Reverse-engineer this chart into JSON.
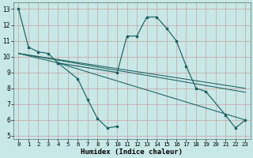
{
  "title": "",
  "xlabel": "Humidex (Indice chaleur)",
  "background_color": "#c8e8e8",
  "grid_color": "#c8a0a0",
  "line_color": "#1a6060",
  "xlim": [
    -0.5,
    23.5
  ],
  "ylim": [
    4.8,
    13.4
  ],
  "xticks": [
    0,
    1,
    2,
    3,
    4,
    5,
    6,
    7,
    8,
    9,
    10,
    11,
    12,
    13,
    14,
    15,
    16,
    17,
    18,
    19,
    20,
    21,
    22,
    23
  ],
  "yticks": [
    5,
    6,
    7,
    8,
    9,
    10,
    11,
    12,
    13
  ],
  "series_main": {
    "x": [
      0,
      1,
      2,
      3,
      4,
      10,
      11,
      12,
      13,
      14,
      15,
      16,
      17,
      18,
      19,
      21,
      22,
      23
    ],
    "y": [
      13.0,
      10.6,
      10.3,
      10.2,
      9.6,
      9.0,
      11.3,
      11.3,
      12.5,
      12.5,
      11.8,
      11.0,
      9.4,
      8.0,
      7.8,
      6.3,
      5.5,
      6.0
    ]
  },
  "series_dip": {
    "x": [
      4,
      6,
      7,
      8,
      9,
      10
    ],
    "y": [
      9.6,
      8.6,
      7.3,
      6.1,
      5.5,
      5.6
    ]
  },
  "trend_lines": [
    {
      "x": [
        0,
        4,
        23
      ],
      "y": [
        10.2,
        9.6,
        6.0
      ]
    },
    {
      "x": [
        0,
        23
      ],
      "y": [
        10.2,
        8.0
      ]
    },
    {
      "x": [
        0,
        23
      ],
      "y": [
        10.2,
        7.75
      ]
    }
  ]
}
